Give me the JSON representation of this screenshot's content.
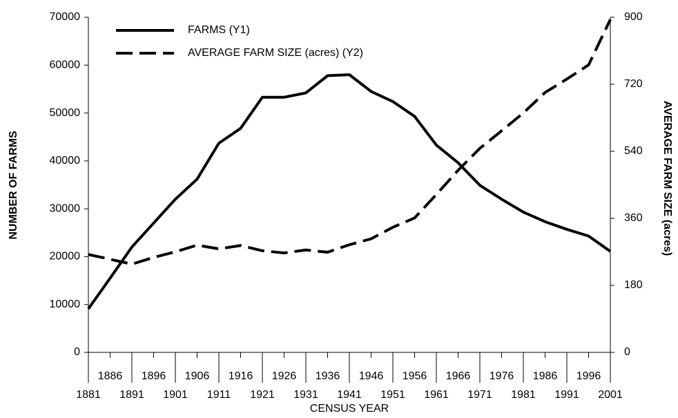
{
  "chart_data": {
    "type": "line",
    "xlabel": "CENSUS YEAR",
    "ylabel": "NUMBER OF FARMS",
    "y2label": "AVERAGE FARM SIZE (acres)",
    "x": [
      1881,
      1886,
      1891,
      1896,
      1901,
      1906,
      1911,
      1916,
      1921,
      1926,
      1931,
      1936,
      1941,
      1946,
      1951,
      1956,
      1961,
      1966,
      1971,
      1976,
      1981,
      1986,
      1991,
      1996,
      2001
    ],
    "xlim": [
      1881,
      2001
    ],
    "xticks": [
      1881,
      1886,
      1891,
      1896,
      1901,
      1906,
      1911,
      1916,
      1921,
      1926,
      1931,
      1936,
      1941,
      1946,
      1951,
      1956,
      1961,
      1966,
      1971,
      1976,
      1981,
      1986,
      1991,
      1996,
      2001
    ],
    "ylim": [
      0,
      70000
    ],
    "yticks": [
      0,
      10000,
      20000,
      30000,
      40000,
      50000,
      60000,
      70000
    ],
    "y2lim": [
      0,
      900
    ],
    "y2ticks": [
      0,
      180,
      360,
      540,
      720,
      900
    ],
    "legend": "upper left",
    "series": [
      {
        "name": "FARMS (Y1)",
        "color": "#000000",
        "dash": "solid",
        "values": [
          9100,
          15500,
          22000,
          27000,
          32000,
          36200,
          43700,
          46800,
          53300,
          53300,
          54200,
          57800,
          58000,
          54500,
          52400,
          49300,
          43300,
          39600,
          34900,
          32000,
          29300,
          27300,
          25700,
          24300,
          21100
        ]
      },
      {
        "name": "AVERAGE FARM SIZE (acres) (Y2)",
        "color": "#000000",
        "dash": "dashed",
        "axis": "y2",
        "values": [
          263,
          250,
          237,
          255,
          270,
          288,
          278,
          287,
          273,
          267,
          275,
          269,
          289,
          305,
          336,
          361,
          424,
          489,
          548,
          595,
          643,
          698,
          734,
          772,
          894
        ]
      }
    ]
  }
}
